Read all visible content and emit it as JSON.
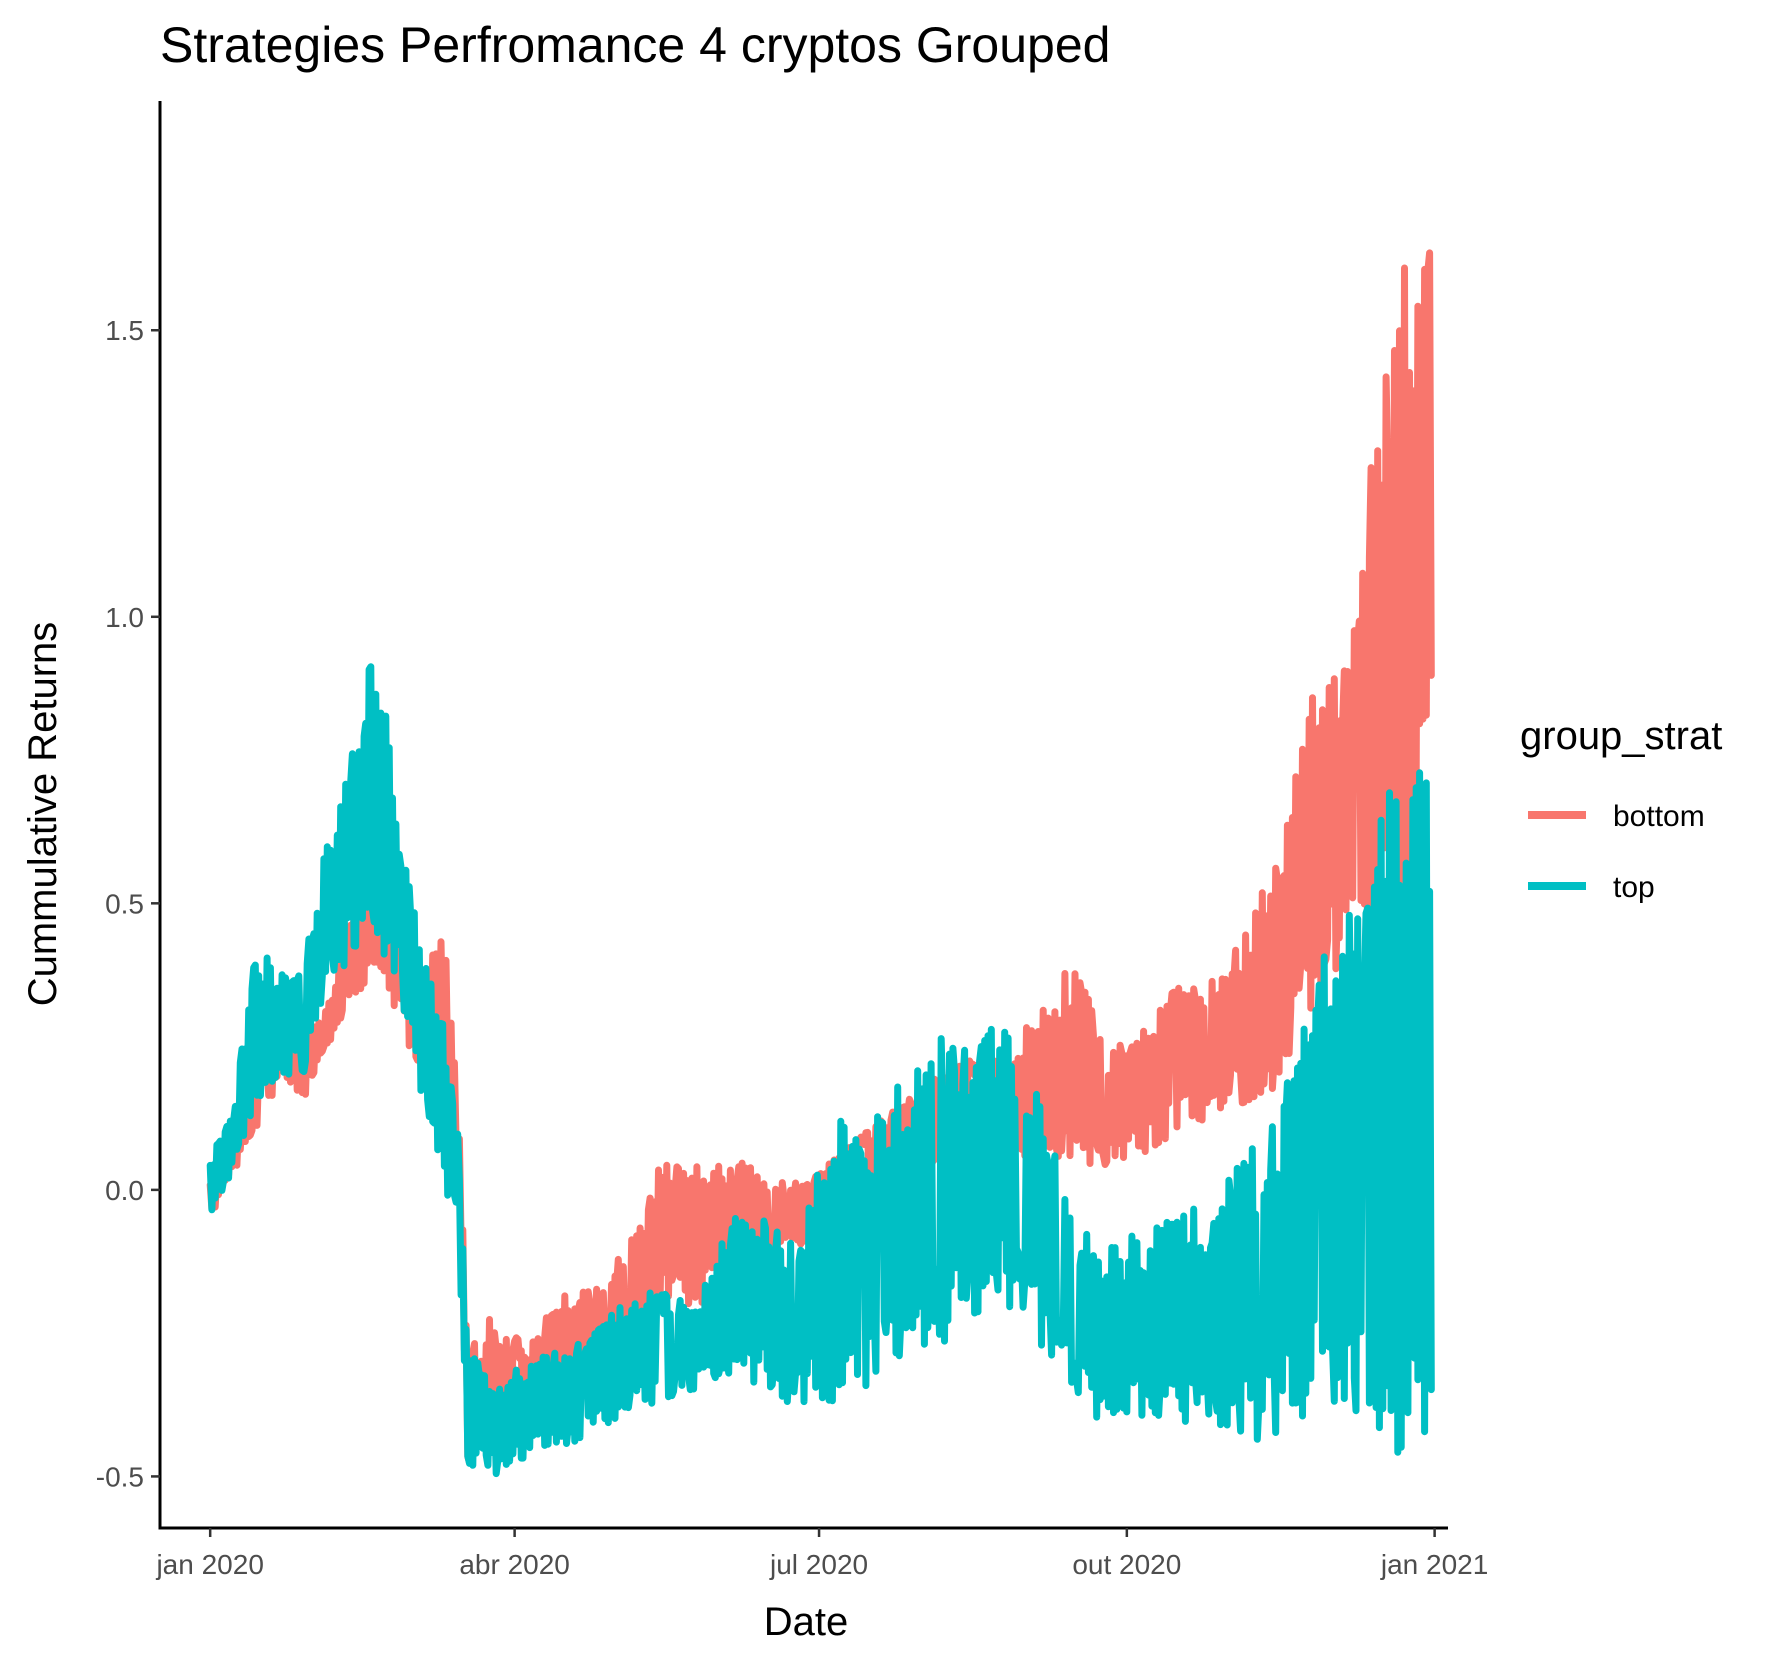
{
  "chart_data": {
    "type": "line",
    "title": "Strategies Perfromance 4 cryptos Grouped",
    "xlabel": "Date",
    "ylabel": "Cummulative Returns",
    "x_ticks": [
      "jan 2020",
      "abr 2020",
      "jul 2020",
      "out 2020",
      "jan 2021"
    ],
    "y_ticks": [
      "-0.5",
      "0.0",
      "0.5",
      "1.0",
      "1.5"
    ],
    "xlim": [
      "2019-12-17",
      "2021-01-05"
    ],
    "ylim": [
      -0.59,
      1.9
    ],
    "grid": false,
    "legend": {
      "title": "group_strat",
      "position": "right"
    },
    "series": [
      {
        "name": "bottom",
        "color": "#F8766D",
        "envelope": [
          {
            "x": "2020-01-01",
            "low": -0.05,
            "high": 0.02
          },
          {
            "x": "2020-01-08",
            "low": 0.03,
            "high": 0.1
          },
          {
            "x": "2020-01-15",
            "low": 0.1,
            "high": 0.22
          },
          {
            "x": "2020-01-22",
            "low": 0.2,
            "high": 0.3
          },
          {
            "x": "2020-01-29",
            "low": 0.16,
            "high": 0.28
          },
          {
            "x": "2020-02-05",
            "low": 0.25,
            "high": 0.32
          },
          {
            "x": "2020-02-12",
            "low": 0.32,
            "high": 0.47
          },
          {
            "x": "2020-02-19",
            "low": 0.36,
            "high": 0.68
          },
          {
            "x": "2020-02-26",
            "low": 0.3,
            "high": 0.6
          },
          {
            "x": "2020-03-04",
            "low": 0.2,
            "high": 0.4
          },
          {
            "x": "2020-03-11",
            "low": 0.25,
            "high": 0.47
          },
          {
            "x": "2020-03-15",
            "low": 0.05,
            "high": 0.18
          },
          {
            "x": "2020-03-18",
            "low": -0.48,
            "high": -0.28
          },
          {
            "x": "2020-03-25",
            "low": -0.45,
            "high": -0.22
          },
          {
            "x": "2020-04-05",
            "low": -0.42,
            "high": -0.27
          },
          {
            "x": "2020-04-15",
            "low": -0.35,
            "high": -0.18
          },
          {
            "x": "2020-04-25",
            "low": -0.3,
            "high": -0.17
          },
          {
            "x": "2020-05-05",
            "low": -0.27,
            "high": -0.1
          },
          {
            "x": "2020-05-15",
            "low": -0.2,
            "high": 0.06
          },
          {
            "x": "2020-05-25",
            "low": -0.22,
            "high": 0.04
          },
          {
            "x": "2020-06-05",
            "low": -0.15,
            "high": 0.06
          },
          {
            "x": "2020-06-15",
            "low": -0.12,
            "high": 0.03
          },
          {
            "x": "2020-06-25",
            "low": -0.1,
            "high": 0.01
          },
          {
            "x": "2020-07-05",
            "low": -0.05,
            "high": 0.05
          },
          {
            "x": "2020-07-15",
            "low": 0.0,
            "high": 0.1
          },
          {
            "x": "2020-07-25",
            "low": 0.03,
            "high": 0.15
          },
          {
            "x": "2020-08-05",
            "low": 0.05,
            "high": 0.2
          },
          {
            "x": "2020-08-15",
            "low": 0.05,
            "high": 0.25
          },
          {
            "x": "2020-08-25",
            "low": 0.07,
            "high": 0.22
          },
          {
            "x": "2020-09-05",
            "low": 0.05,
            "high": 0.32
          },
          {
            "x": "2020-09-15",
            "low": 0.05,
            "high": 0.4
          },
          {
            "x": "2020-09-25",
            "low": 0.03,
            "high": 0.25
          },
          {
            "x": "2020-10-05",
            "low": 0.05,
            "high": 0.28
          },
          {
            "x": "2020-10-15",
            "low": 0.1,
            "high": 0.35
          },
          {
            "x": "2020-10-25",
            "low": 0.12,
            "high": 0.37
          },
          {
            "x": "2020-11-05",
            "low": 0.15,
            "high": 0.45
          },
          {
            "x": "2020-11-15",
            "low": 0.18,
            "high": 0.58
          },
          {
            "x": "2020-11-25",
            "low": 0.3,
            "high": 0.88
          },
          {
            "x": "2020-12-05",
            "low": 0.4,
            "high": 0.92
          },
          {
            "x": "2020-12-12",
            "low": 0.3,
            "high": 1.25
          },
          {
            "x": "2020-12-19",
            "low": 0.4,
            "high": 1.55
          },
          {
            "x": "2020-12-26",
            "low": 0.5,
            "high": 1.7
          },
          {
            "x": "2020-12-31",
            "low": 0.75,
            "high": 1.79
          }
        ]
      },
      {
        "name": "top",
        "color": "#00BFC4",
        "envelope": [
          {
            "x": "2020-01-01",
            "low": -0.05,
            "high": 0.05
          },
          {
            "x": "2020-01-08",
            "low": 0.03,
            "high": 0.15
          },
          {
            "x": "2020-01-15",
            "low": 0.15,
            "high": 0.44
          },
          {
            "x": "2020-01-22",
            "low": 0.2,
            "high": 0.38
          },
          {
            "x": "2020-01-29",
            "low": 0.2,
            "high": 0.4
          },
          {
            "x": "2020-02-05",
            "low": 0.35,
            "high": 0.62
          },
          {
            "x": "2020-02-12",
            "low": 0.4,
            "high": 0.75
          },
          {
            "x": "2020-02-19",
            "low": 0.45,
            "high": 0.98
          },
          {
            "x": "2020-02-26",
            "low": 0.35,
            "high": 0.68
          },
          {
            "x": "2020-03-04",
            "low": 0.15,
            "high": 0.42
          },
          {
            "x": "2020-03-11",
            "low": 0.0,
            "high": 0.3
          },
          {
            "x": "2020-03-15",
            "low": -0.05,
            "high": 0.1
          },
          {
            "x": "2020-03-18",
            "low": -0.48,
            "high": -0.28
          },
          {
            "x": "2020-03-25",
            "low": -0.5,
            "high": -0.33
          },
          {
            "x": "2020-04-05",
            "low": -0.47,
            "high": -0.3
          },
          {
            "x": "2020-04-15",
            "low": -0.45,
            "high": -0.28
          },
          {
            "x": "2020-04-25",
            "low": -0.43,
            "high": -0.25
          },
          {
            "x": "2020-05-05",
            "low": -0.38,
            "high": -0.18
          },
          {
            "x": "2020-05-15",
            "low": -0.37,
            "high": -0.17
          },
          {
            "x": "2020-05-25",
            "low": -0.35,
            "high": -0.2
          },
          {
            "x": "2020-06-05",
            "low": -0.32,
            "high": -0.05
          },
          {
            "x": "2020-06-15",
            "low": -0.35,
            "high": -0.05
          },
          {
            "x": "2020-06-25",
            "low": -0.38,
            "high": -0.1
          },
          {
            "x": "2020-07-05",
            "low": -0.37,
            "high": 0.15
          },
          {
            "x": "2020-07-15",
            "low": -0.35,
            "high": 0.1
          },
          {
            "x": "2020-07-25",
            "low": -0.3,
            "high": 0.2
          },
          {
            "x": "2020-08-05",
            "low": -0.27,
            "high": 0.28
          },
          {
            "x": "2020-08-15",
            "low": -0.25,
            "high": 0.25
          },
          {
            "x": "2020-08-25",
            "low": -0.2,
            "high": 0.31
          },
          {
            "x": "2020-09-05",
            "low": -0.27,
            "high": 0.22
          },
          {
            "x": "2020-09-15",
            "low": -0.35,
            "high": -0.05
          },
          {
            "x": "2020-09-25",
            "low": -0.42,
            "high": -0.1
          },
          {
            "x": "2020-10-05",
            "low": -0.4,
            "high": -0.07
          },
          {
            "x": "2020-10-15",
            "low": -0.4,
            "high": -0.02
          },
          {
            "x": "2020-10-25",
            "low": -0.42,
            "high": -0.04
          },
          {
            "x": "2020-11-05",
            "low": -0.44,
            "high": 0.06
          },
          {
            "x": "2020-11-15",
            "low": -0.44,
            "high": 0.12
          },
          {
            "x": "2020-11-25",
            "low": -0.4,
            "high": 0.45
          },
          {
            "x": "2020-12-05",
            "low": -0.4,
            "high": 0.45
          },
          {
            "x": "2020-12-12",
            "low": -0.38,
            "high": 0.6
          },
          {
            "x": "2020-12-19",
            "low": -0.5,
            "high": 0.71
          },
          {
            "x": "2020-12-26",
            "low": -0.45,
            "high": 0.8
          },
          {
            "x": "2020-12-31",
            "low": -0.45,
            "high": 0.75
          }
        ]
      }
    ]
  }
}
